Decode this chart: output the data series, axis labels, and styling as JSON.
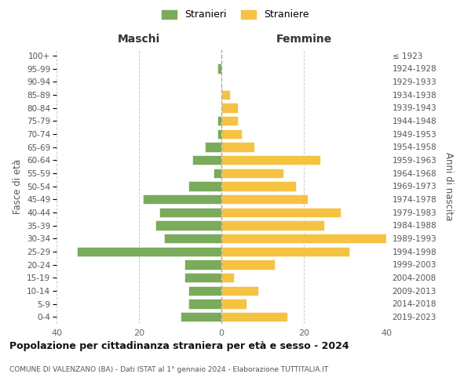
{
  "age_groups": [
    "0-4",
    "5-9",
    "10-14",
    "15-19",
    "20-24",
    "25-29",
    "30-34",
    "35-39",
    "40-44",
    "45-49",
    "50-54",
    "55-59",
    "60-64",
    "65-69",
    "70-74",
    "75-79",
    "80-84",
    "85-89",
    "90-94",
    "95-99",
    "100+"
  ],
  "birth_years": [
    "2019-2023",
    "2014-2018",
    "2009-2013",
    "2004-2008",
    "1999-2003",
    "1994-1998",
    "1989-1993",
    "1984-1988",
    "1979-1983",
    "1974-1978",
    "1969-1973",
    "1964-1968",
    "1959-1963",
    "1954-1958",
    "1949-1953",
    "1944-1948",
    "1939-1943",
    "1934-1938",
    "1929-1933",
    "1924-1928",
    "≤ 1923"
  ],
  "maschi": [
    10,
    8,
    8,
    9,
    9,
    35,
    14,
    16,
    15,
    19,
    8,
    2,
    7,
    4,
    1,
    1,
    0,
    0,
    0,
    1,
    0
  ],
  "femmine": [
    16,
    6,
    9,
    3,
    13,
    31,
    40,
    25,
    29,
    21,
    18,
    15,
    24,
    8,
    5,
    4,
    4,
    2,
    0,
    0,
    0
  ],
  "color_maschi": "#7aaa5b",
  "color_femmine": "#f5c242",
  "background_color": "#ffffff",
  "grid_color": "#cccccc",
  "title": "Popolazione per cittadinanza straniera per età e sesso - 2024",
  "subtitle": "COMUNE DI VALENZANO (BA) - Dati ISTAT al 1° gennaio 2024 - Elaborazione TUTTITALIA.IT",
  "xlabel_left": "Maschi",
  "xlabel_right": "Femmine",
  "ylabel_left": "Fasce di età",
  "ylabel_right": "Anni di nascita",
  "legend_stranieri": "Stranieri",
  "legend_straniere": "Straniere",
  "xlim": 40
}
